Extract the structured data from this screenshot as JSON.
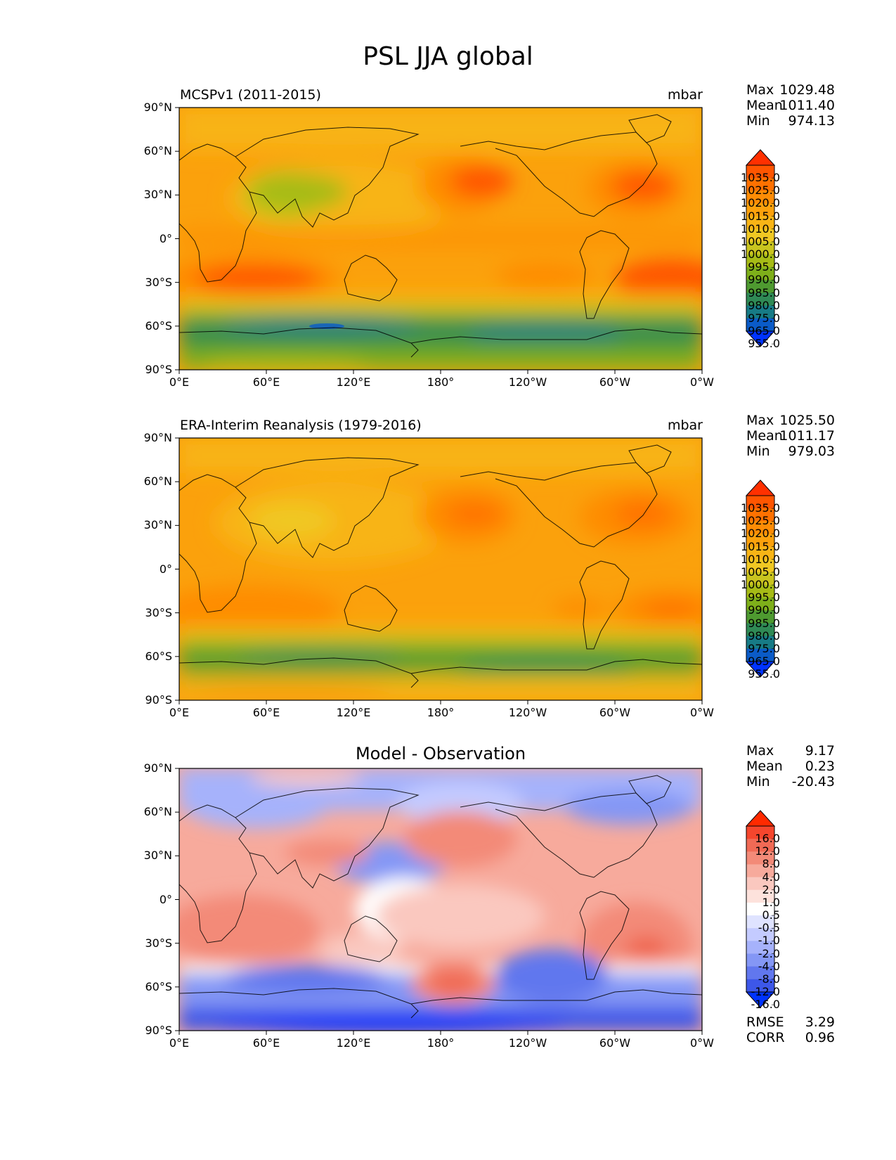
{
  "figure": {
    "title": "PSL JJA global"
  },
  "axes": {
    "lat_ticks": [
      "90°N",
      "60°N",
      "30°N",
      "0°",
      "30°S",
      "60°S",
      "90°S"
    ],
    "lon_ticks": [
      "0°E",
      "60°E",
      "120°E",
      "180°",
      "120°W",
      "60°W",
      "0°W"
    ]
  },
  "panels": [
    {
      "id": "model",
      "title_left": "MCSPv1 (2011-2015)",
      "title_center": "",
      "units": "mbar",
      "stats": [
        {
          "label": "Max",
          "value": "1029.48"
        },
        {
          "label": "Mean",
          "value": "1011.40"
        },
        {
          "label": "Min",
          "value": "974.13"
        }
      ],
      "colorbar": {
        "labels": [
          "1035.0",
          "1025.0",
          "1020.0",
          "1015.0",
          "1010.0",
          "1005.0",
          "1000.0",
          "995.0",
          "990.0",
          "985.0",
          "980.0",
          "975.0",
          "965.0",
          "955.0"
        ],
        "colors": [
          "#ff3000",
          "#ff5500",
          "#ff7100",
          "#fe8c05",
          "#fba10c",
          "#f8b416",
          "#f0c823",
          "#c9c41f",
          "#a6bb16",
          "#7eaf1a",
          "#4e9a30",
          "#2f8a55",
          "#177b86",
          "#0a5bc8",
          "#0033ff"
        ]
      }
    },
    {
      "id": "obs",
      "title_left": "ERA-Interim Reanalysis (1979-2016)",
      "title_center": "",
      "units": "mbar",
      "stats": [
        {
          "label": "Max",
          "value": "1025.50"
        },
        {
          "label": "Mean",
          "value": "1011.17"
        },
        {
          "label": "Min",
          "value": "979.03"
        }
      ],
      "colorbar": {
        "labels": [
          "1035.0",
          "1025.0",
          "1020.0",
          "1015.0",
          "1010.0",
          "1005.0",
          "1000.0",
          "995.0",
          "990.0",
          "985.0",
          "980.0",
          "975.0",
          "965.0",
          "955.0"
        ],
        "colors": [
          "#ff3000",
          "#ff5500",
          "#ff7100",
          "#fe8c05",
          "#fba10c",
          "#f8b416",
          "#f0c823",
          "#c9c41f",
          "#a6bb16",
          "#7eaf1a",
          "#4e9a30",
          "#2f8a55",
          "#177b86",
          "#0a5bc8",
          "#0033ff"
        ]
      }
    },
    {
      "id": "diff",
      "title_left": "",
      "title_center": "Model - Observation",
      "units": "",
      "stats": [
        {
          "label": "Max",
          "value": "9.17"
        },
        {
          "label": "Mean",
          "value": "0.23"
        },
        {
          "label": "Min",
          "value": "-20.43"
        }
      ],
      "extra_stats": [
        {
          "label": "RMSE",
          "value": "3.29"
        },
        {
          "label": "CORR",
          "value": "0.96"
        }
      ],
      "colorbar": {
        "labels": [
          "16.0",
          "12.0",
          "8.0",
          "4.0",
          "2.0",
          "1.0",
          "0.5",
          "-0.5",
          "-1.0",
          "-2.0",
          "-4.0",
          "-8.0",
          "-12.0",
          "-16.0"
        ],
        "colors": [
          "#ff2a00",
          "#f5462d",
          "#f06a55",
          "#f38a78",
          "#f7aa9c",
          "#fac8bf",
          "#fde2dc",
          "#ffffff",
          "#dfe3ff",
          "#c4cbff",
          "#a6b2fb",
          "#8497f5",
          "#6177ee",
          "#3d57e8",
          "#0033ff"
        ]
      }
    }
  ]
}
